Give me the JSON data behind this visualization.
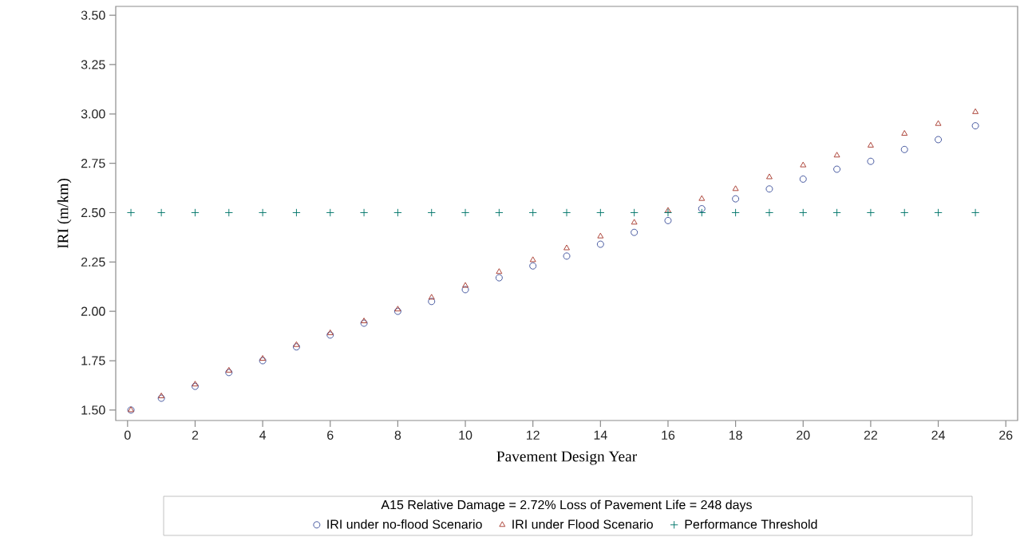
{
  "chart_data": {
    "type": "scatter",
    "xlabel": "Pavement Design Year",
    "ylabel": "IRI (m/km)",
    "legend_title": "A15 Relative Damage = 2.72% Loss of Pavement Life = 248 days",
    "legend": "bottom",
    "xlim": [
      -0.35,
      26.35
    ],
    "ylim": [
      1.447,
      3.545
    ],
    "xticks": [
      0,
      2,
      4,
      6,
      8,
      10,
      12,
      14,
      16,
      18,
      20,
      22,
      24,
      26
    ],
    "yticks": [
      {
        "value": 1.5,
        "label": "1.50"
      },
      {
        "value": 1.75,
        "label": "1.75"
      },
      {
        "value": 2.0,
        "label": "2.00"
      },
      {
        "value": 2.25,
        "label": "2.25"
      },
      {
        "value": 2.5,
        "label": "2.50"
      },
      {
        "value": 2.75,
        "label": "2.75"
      },
      {
        "value": 3.0,
        "label": "3.00"
      },
      {
        "value": 3.25,
        "label": "3.25"
      },
      {
        "value": 3.5,
        "label": "3.50"
      }
    ],
    "series": [
      {
        "name": "IRI under no-flood Scenario",
        "color": "#3b4f9a",
        "marker": "circle",
        "x": [
          0.1,
          1,
          2,
          3,
          4,
          5,
          6,
          7,
          8,
          9,
          10,
          11,
          12,
          13,
          14,
          15,
          16,
          17,
          18,
          19,
          20,
          21,
          22,
          23,
          24,
          25.1
        ],
        "values": [
          1.5,
          1.56,
          1.62,
          1.69,
          1.75,
          1.82,
          1.88,
          1.94,
          2.0,
          2.05,
          2.11,
          2.17,
          2.23,
          2.28,
          2.34,
          2.4,
          2.46,
          2.52,
          2.57,
          2.62,
          2.67,
          2.72,
          2.76,
          2.82,
          2.87,
          2.94
        ]
      },
      {
        "name": "IRI under Flood Scenario",
        "color": "#a83a2e",
        "marker": "triangle",
        "x": [
          0.1,
          1,
          2,
          3,
          4,
          5,
          6,
          7,
          8,
          9,
          10,
          11,
          12,
          13,
          14,
          15,
          16,
          17,
          18,
          19,
          20,
          21,
          22,
          23,
          24,
          25.1
        ],
        "values": [
          1.5,
          1.57,
          1.63,
          1.7,
          1.76,
          1.83,
          1.89,
          1.95,
          2.01,
          2.07,
          2.13,
          2.2,
          2.26,
          2.32,
          2.38,
          2.45,
          2.51,
          2.57,
          2.62,
          2.68,
          2.74,
          2.79,
          2.84,
          2.9,
          2.95,
          3.01
        ]
      },
      {
        "name": "Performance Threshold",
        "color": "#00766a",
        "marker": "cross",
        "x": [
          0.1,
          1,
          2,
          3,
          4,
          5,
          6,
          7,
          8,
          9,
          10,
          11,
          12,
          13,
          14,
          15,
          16,
          17,
          18,
          19,
          20,
          21,
          22,
          23,
          24,
          25.1
        ],
        "values": [
          2.5,
          2.5,
          2.5,
          2.5,
          2.5,
          2.5,
          2.5,
          2.5,
          2.5,
          2.5,
          2.5,
          2.5,
          2.5,
          2.5,
          2.5,
          2.5,
          2.5,
          2.5,
          2.5,
          2.5,
          2.5,
          2.5,
          2.5,
          2.5,
          2.5,
          2.5
        ]
      }
    ]
  }
}
